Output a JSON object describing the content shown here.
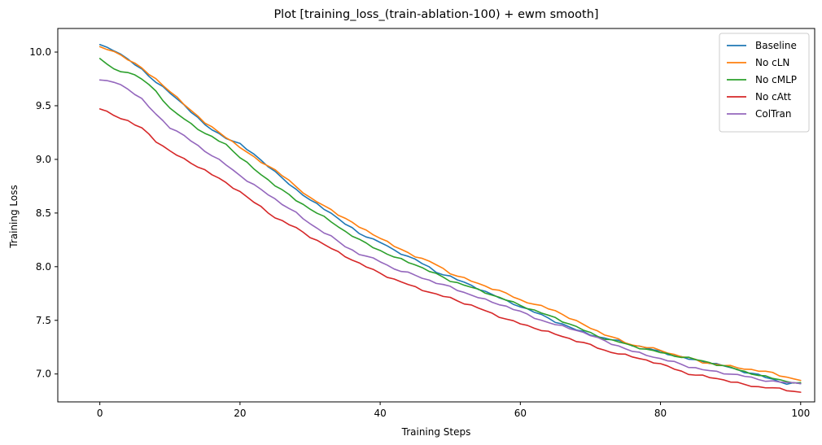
{
  "chart_data": {
    "type": "line",
    "title": "Plot [training_loss_(train-ablation-100) + ewm smooth]",
    "xlabel": "Training Steps",
    "ylabel": "Training Loss",
    "xlim": [
      -6,
      102
    ],
    "ylim": [
      6.74,
      10.22
    ],
    "xticks": [
      0,
      20,
      40,
      60,
      80,
      100
    ],
    "yticks": [
      7.0,
      7.5,
      8.0,
      8.5,
      9.0,
      9.5,
      10.0
    ],
    "xtick_labels": [
      "0",
      "20",
      "40",
      "60",
      "80",
      "100"
    ],
    "ytick_labels": [
      "7.0",
      "7.5",
      "8.0",
      "8.5",
      "9.0",
      "9.5",
      "10.0"
    ],
    "grid": false,
    "legend_position": "top-right",
    "x_knots": [
      0,
      2,
      4,
      6,
      8,
      10,
      12,
      15,
      18,
      20,
      22,
      25,
      28,
      30,
      33,
      35,
      37,
      40,
      42,
      45,
      48,
      50,
      52,
      55,
      58,
      60,
      63,
      65,
      68,
      70,
      72,
      74,
      76,
      78,
      80,
      82,
      84,
      86,
      88,
      90,
      92,
      94,
      96,
      98,
      100
    ],
    "series": [
      {
        "name": "Baseline",
        "color": "#1f77b4",
        "x": [
          0,
          2,
          4,
          6,
          8,
          10,
          12,
          15,
          18,
          20,
          22,
          25,
          28,
          30,
          33,
          35,
          37,
          40,
          42,
          45,
          48,
          50,
          52,
          55,
          58,
          60,
          63,
          65,
          68,
          70,
          72,
          74,
          76,
          78,
          80,
          82,
          84,
          86,
          88,
          90,
          92,
          94,
          96,
          98,
          100
        ],
        "y": [
          10.07,
          10.02,
          9.93,
          9.84,
          9.72,
          9.62,
          9.51,
          9.32,
          9.2,
          9.14,
          9.05,
          8.88,
          8.72,
          8.62,
          8.5,
          8.4,
          8.31,
          8.23,
          8.15,
          8.07,
          7.95,
          7.91,
          7.85,
          7.77,
          7.68,
          7.63,
          7.55,
          7.49,
          7.41,
          7.37,
          7.33,
          7.31,
          7.27,
          7.24,
          7.21,
          7.17,
          7.14,
          7.12,
          7.09,
          7.06,
          7.02,
          6.99,
          6.95,
          6.91,
          6.91
        ]
      },
      {
        "name": "No cLN",
        "color": "#ff7f0e",
        "x": [
          0,
          2,
          4,
          6,
          8,
          10,
          12,
          15,
          18,
          20,
          22,
          25,
          28,
          30,
          33,
          35,
          37,
          40,
          42,
          45,
          48,
          50,
          52,
          55,
          58,
          60,
          63,
          65,
          68,
          70,
          72,
          74,
          76,
          78,
          80,
          82,
          84,
          86,
          88,
          90,
          92,
          94,
          96,
          98,
          100
        ],
        "y": [
          10.05,
          10.01,
          9.93,
          9.85,
          9.75,
          9.63,
          9.52,
          9.34,
          9.21,
          9.11,
          9.02,
          8.9,
          8.75,
          8.64,
          8.53,
          8.45,
          8.37,
          8.27,
          8.19,
          8.1,
          8.02,
          7.94,
          7.89,
          7.82,
          7.75,
          7.69,
          7.63,
          7.59,
          7.49,
          7.43,
          7.37,
          7.32,
          7.27,
          7.25,
          7.22,
          7.18,
          7.15,
          7.11,
          7.09,
          7.07,
          7.05,
          7.03,
          7.01,
          6.97,
          6.94
        ]
      },
      {
        "name": "No cMLP",
        "color": "#2ca02c",
        "x": [
          0,
          2,
          4,
          6,
          8,
          10,
          12,
          15,
          18,
          20,
          22,
          25,
          28,
          30,
          33,
          35,
          37,
          40,
          42,
          45,
          48,
          50,
          52,
          55,
          58,
          60,
          63,
          65,
          68,
          70,
          72,
          74,
          76,
          78,
          80,
          82,
          84,
          86,
          88,
          90,
          92,
          94,
          96,
          98,
          100
        ],
        "y": [
          9.94,
          9.84,
          9.81,
          9.75,
          9.64,
          9.47,
          9.38,
          9.24,
          9.14,
          9.02,
          8.91,
          8.76,
          8.62,
          8.54,
          8.42,
          8.33,
          8.25,
          8.15,
          8.09,
          8.02,
          7.93,
          7.87,
          7.83,
          7.76,
          7.69,
          7.64,
          7.57,
          7.52,
          7.44,
          7.38,
          7.33,
          7.3,
          7.26,
          7.23,
          7.2,
          7.17,
          7.15,
          7.12,
          7.09,
          7.06,
          7.02,
          6.99,
          6.96,
          6.93,
          6.92
        ]
      },
      {
        "name": "No cAtt",
        "color": "#d62728",
        "x": [
          0,
          2,
          4,
          6,
          8,
          10,
          12,
          15,
          18,
          20,
          22,
          25,
          28,
          30,
          33,
          35,
          37,
          40,
          42,
          45,
          48,
          50,
          52,
          55,
          58,
          60,
          63,
          65,
          68,
          70,
          72,
          74,
          76,
          78,
          80,
          82,
          84,
          86,
          88,
          90,
          92,
          94,
          96,
          98,
          100
        ],
        "y": [
          9.47,
          9.41,
          9.36,
          9.29,
          9.17,
          9.08,
          9.0,
          8.9,
          8.78,
          8.7,
          8.6,
          8.46,
          8.36,
          8.28,
          8.17,
          8.1,
          8.03,
          7.94,
          7.88,
          7.81,
          7.74,
          7.71,
          7.66,
          7.59,
          7.51,
          7.47,
          7.41,
          7.37,
          7.31,
          7.27,
          7.22,
          7.19,
          7.16,
          7.13,
          7.09,
          7.05,
          7.0,
          6.98,
          6.96,
          6.93,
          6.9,
          6.88,
          6.87,
          6.85,
          6.83
        ]
      },
      {
        "name": "ColTran",
        "color": "#9467bd",
        "x": [
          0,
          2,
          4,
          6,
          8,
          10,
          12,
          15,
          18,
          20,
          22,
          25,
          28,
          30,
          33,
          35,
          37,
          40,
          42,
          45,
          48,
          50,
          52,
          55,
          58,
          60,
          63,
          65,
          68,
          70,
          72,
          74,
          76,
          78,
          80,
          82,
          84,
          86,
          88,
          90,
          92,
          94,
          96,
          98,
          100
        ],
        "y": [
          9.74,
          9.72,
          9.66,
          9.56,
          9.42,
          9.3,
          9.22,
          9.08,
          8.95,
          8.85,
          8.76,
          8.63,
          8.5,
          8.4,
          8.28,
          8.19,
          8.12,
          8.05,
          7.98,
          7.92,
          7.85,
          7.81,
          7.76,
          7.69,
          7.63,
          7.58,
          7.5,
          7.46,
          7.41,
          7.36,
          7.31,
          7.26,
          7.21,
          7.18,
          7.14,
          7.11,
          7.07,
          7.04,
          7.02,
          7.0,
          6.98,
          6.95,
          6.93,
          6.92,
          6.91
        ]
      }
    ]
  }
}
